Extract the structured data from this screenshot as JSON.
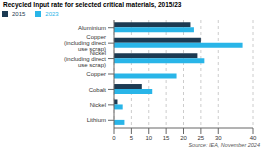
{
  "chart_data": {
    "type": "bar",
    "orientation": "horizontal",
    "title": "Recycled Input rate for selected critical materials, 2015/23",
    "categories": [
      "Aluminium",
      "Copper (including direct use scrap)",
      "Nickel (including direct use scrap)",
      "Copper",
      "Cobalt",
      "Nickel",
      "Lithium"
    ],
    "series": [
      {
        "name": "2015",
        "color": "#1c3a52",
        "values": [
          22,
          25,
          24,
          0,
          8,
          1,
          0
        ]
      },
      {
        "name": "2023",
        "color": "#29b5e8",
        "values": [
          23,
          37,
          26,
          18,
          11,
          2.5,
          3
        ]
      }
    ],
    "xlim": [
      0,
      40
    ],
    "xticks": [
      0,
      5,
      10,
      15,
      20,
      25,
      30,
      40
    ],
    "grid": true,
    "legend": "upper left",
    "annotations": [
      "Source: IEA, November 2024"
    ]
  }
}
